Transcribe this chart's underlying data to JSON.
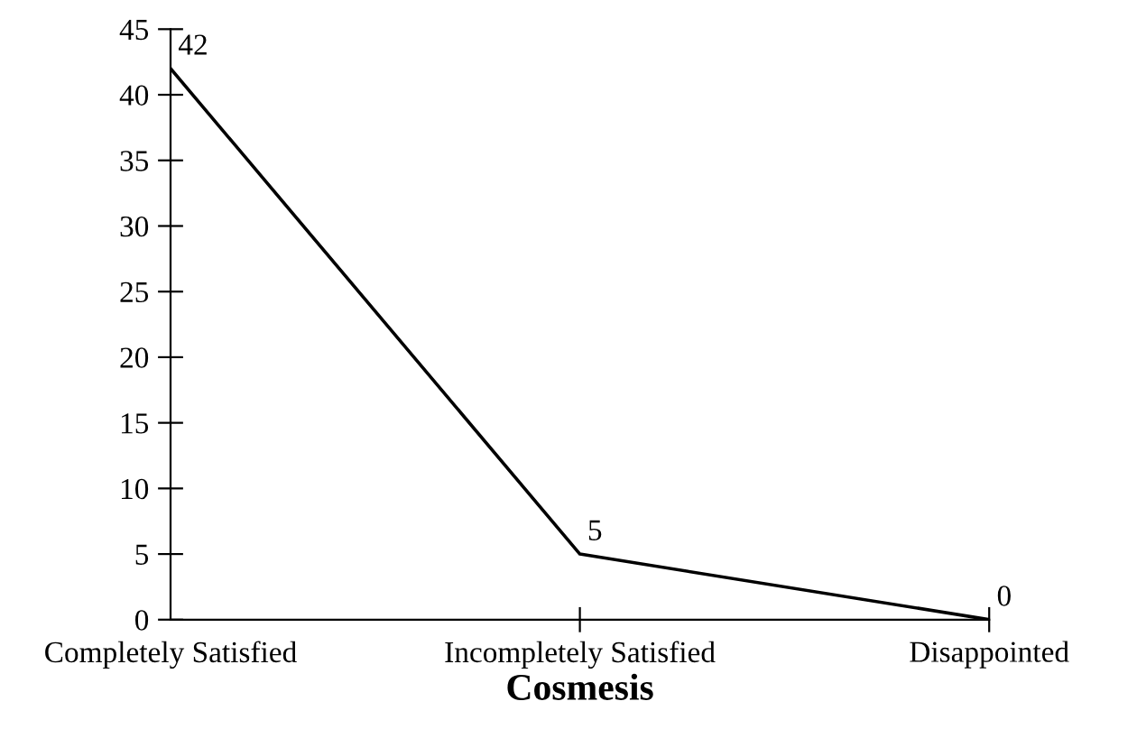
{
  "chart_data": {
    "type": "line",
    "categories": [
      "Completely Satisfied",
      "Incompletely Satisfied",
      "Disappointed"
    ],
    "series": [
      {
        "color": "#000000",
        "values": [
          42,
          5,
          0
        ]
      }
    ],
    "xlabel": "Cosmesis",
    "ylim": [
      0,
      45
    ],
    "yticks": [
      0,
      5,
      10,
      15,
      20,
      25,
      30,
      35,
      40,
      45
    ],
    "data_labels": true,
    "grid": false,
    "legend": false,
    "marker": "none",
    "line_style": "solid"
  }
}
